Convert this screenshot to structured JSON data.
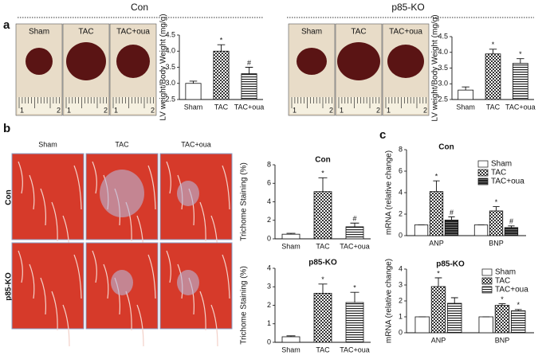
{
  "figure": {
    "groups": [
      "Con",
      "p85-KO"
    ],
    "panels": [
      "a",
      "b",
      "c"
    ],
    "photo_labels": [
      "Sham",
      "TAC",
      "TAC+oua"
    ],
    "ruler_labels": [
      "1",
      "2"
    ],
    "histology_columns": [
      "Sham",
      "TAC",
      "TAC+oua"
    ],
    "histology_rows": [
      "Con",
      "p85-KO"
    ]
  },
  "chart_data": [
    {
      "type": "bar",
      "ylabel": "LV weight/Body Weight (mg/g)",
      "categories": [
        "Sham",
        "TAC",
        "TAC+oua"
      ],
      "values": [
        3.0,
        4.0,
        3.3
      ],
      "errors": [
        0.07,
        0.2,
        0.2
      ],
      "ylim": [
        2.5,
        4.5
      ],
      "yticks": [
        2.5,
        {
          "value": 3,
          "label": "3.0"
        },
        3.5,
        {
          "value": 4,
          "label": "4.0"
        },
        4.5
      ],
      "annotations": [
        {
          "index": 1,
          "text": "*"
        },
        {
          "index": 2,
          "text": "#"
        }
      ]
    },
    {
      "type": "bar",
      "ylabel": "LV weight/Body Weight (mg/g)",
      "categories": [
        "Sham",
        "TAC",
        "TAC+oua"
      ],
      "values": [
        2.8,
        3.95,
        3.65
      ],
      "errors": [
        0.1,
        0.15,
        0.15
      ],
      "ylim": [
        2.5,
        4.5
      ],
      "yticks": [
        2.5,
        {
          "value": 3,
          "label": "3.0"
        },
        3.5,
        {
          "value": 4,
          "label": "4.0"
        },
        4.5
      ],
      "annotations": [
        {
          "index": 1,
          "text": "*"
        },
        {
          "index": 2,
          "text": "*"
        }
      ]
    },
    {
      "type": "bar",
      "title": "Con",
      "ylabel": "Trichome Staining (%)",
      "categories": [
        "Sham",
        "TAC",
        "TAC+oua"
      ],
      "values": [
        0.5,
        5.1,
        1.3
      ],
      "errors": [
        0.1,
        1.5,
        0.4
      ],
      "ylim": [
        0,
        8
      ],
      "yticks": [
        0,
        2,
        4,
        6,
        8
      ],
      "annotations": [
        {
          "index": 1,
          "text": "*"
        },
        {
          "index": 2,
          "text": "#"
        }
      ]
    },
    {
      "type": "bar",
      "title": "p85-KO",
      "ylabel": "Trichome Staining (%)",
      "categories": [
        "Sham",
        "TAC",
        "TAC+oua"
      ],
      "values": [
        0.3,
        2.65,
        2.15
      ],
      "errors": [
        0.05,
        0.5,
        0.55
      ],
      "ylim": [
        0,
        4
      ],
      "yticks": [
        0,
        1,
        2,
        3,
        4
      ],
      "annotations": [
        {
          "index": 1,
          "text": "*"
        },
        {
          "index": 2,
          "text": "*"
        }
      ]
    },
    {
      "type": "grouped_bar",
      "title": "Con",
      "ylabel": "mRNA (relative change)",
      "categories": [
        "ANP",
        "BNP"
      ],
      "series": [
        {
          "name": "Sham",
          "values": [
            1,
            1
          ],
          "errors": [
            0,
            0
          ]
        },
        {
          "name": "TAC",
          "values": [
            4.1,
            2.3
          ],
          "errors": [
            1.0,
            0.4
          ]
        },
        {
          "name": "TAC+oua",
          "values": [
            1.45,
            0.75
          ],
          "errors": [
            0.3,
            0.15
          ]
        }
      ],
      "ylim": [
        0,
        8
      ],
      "yticks": [
        0,
        2,
        4,
        6,
        8
      ],
      "legend": "upper right",
      "annotations": [
        {
          "series": 1,
          "index": 0,
          "text": "*"
        },
        {
          "series": 2,
          "index": 0,
          "text": "#"
        },
        {
          "series": 1,
          "index": 1,
          "text": "*"
        },
        {
          "series": 2,
          "index": 1,
          "text": "#"
        }
      ]
    },
    {
      "type": "grouped_bar",
      "title": "p85-KO",
      "ylabel": "mRNA (relative change)",
      "categories": [
        "ANP",
        "BNP"
      ],
      "series": [
        {
          "name": "Sham",
          "values": [
            1,
            1
          ],
          "errors": [
            0,
            0
          ]
        },
        {
          "name": "TAC",
          "values": [
            2.9,
            1.72
          ],
          "errors": [
            0.55,
            0.1
          ]
        },
        {
          "name": "TAC+oua",
          "values": [
            1.85,
            1.38
          ],
          "errors": [
            0.35,
            0.08
          ]
        }
      ],
      "ylim": [
        0,
        4
      ],
      "yticks": [
        0,
        1,
        2,
        3,
        4
      ],
      "legend": "upper right",
      "annotations": [
        {
          "series": 1,
          "index": 0,
          "text": "*"
        },
        {
          "series": 1,
          "index": 1,
          "text": "*"
        },
        {
          "series": 2,
          "index": 1,
          "text": "*"
        }
      ]
    }
  ]
}
